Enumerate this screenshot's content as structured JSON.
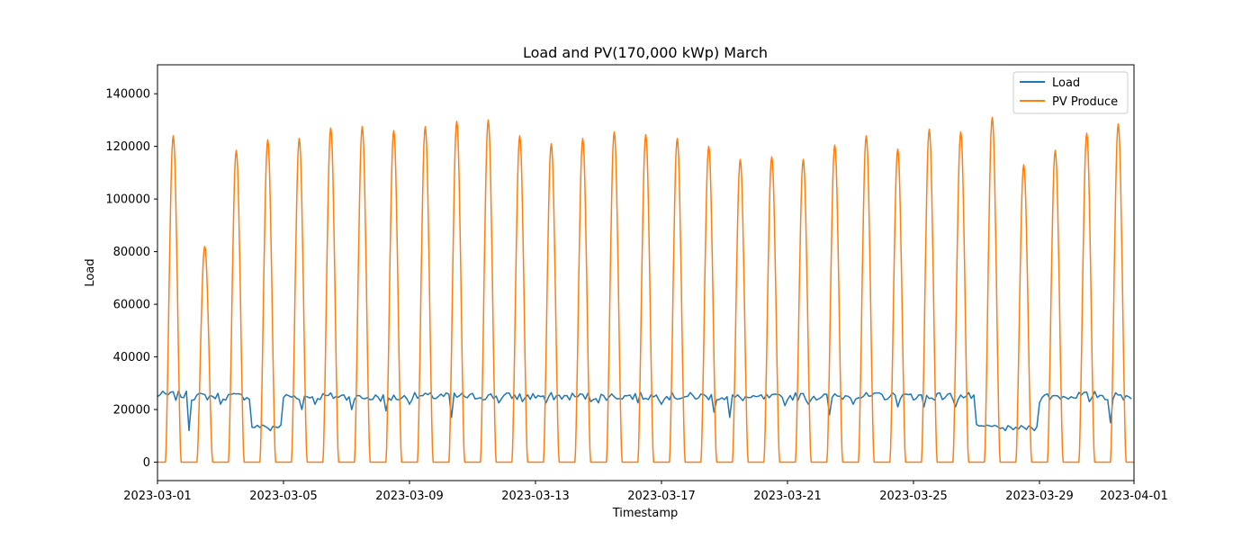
{
  "chart_data": {
    "type": "line",
    "title": "Load and PV(170,000 kWp) March",
    "xlabel": "Timestamp",
    "ylabel": "Load",
    "xlim": [
      "2023-03-01",
      "2023-04-01"
    ],
    "ylim": [
      -7000,
      151000
    ],
    "grid": false,
    "legend_position": "top-right",
    "x_tick_labels": [
      "2023-03-01",
      "2023-03-05",
      "2023-03-09",
      "2023-03-13",
      "2023-03-17",
      "2023-03-21",
      "2023-03-25",
      "2023-03-29",
      "2023-04-01"
    ],
    "y_ticks": [
      0,
      20000,
      40000,
      60000,
      80000,
      100000,
      120000,
      140000
    ],
    "series": [
      {
        "name": "Load",
        "color": "#1f77b4",
        "dates": [
          "2023-03-01",
          "2023-03-02",
          "2023-03-03",
          "2023-03-04",
          "2023-03-05",
          "2023-03-06",
          "2023-03-07",
          "2023-03-08",
          "2023-03-09",
          "2023-03-10",
          "2023-03-11",
          "2023-03-12",
          "2023-03-13",
          "2023-03-14",
          "2023-03-15",
          "2023-03-16",
          "2023-03-17",
          "2023-03-18",
          "2023-03-19",
          "2023-03-20",
          "2023-03-21",
          "2023-03-22",
          "2023-03-23",
          "2023-03-24",
          "2023-03-25",
          "2023-03-26",
          "2023-03-27",
          "2023-03-28",
          "2023-03-29",
          "2023-03-30",
          "2023-03-31"
        ],
        "daily_typical_load": [
          25500,
          25000,
          25000,
          13500,
          25000,
          25000,
          24500,
          24500,
          25000,
          25000,
          25000,
          25000,
          25000,
          25000,
          25000,
          25000,
          25000,
          25000,
          24500,
          24500,
          25000,
          25000,
          25000,
          25000,
          25000,
          25000,
          13500,
          13000,
          25000,
          25500,
          25000
        ],
        "daily_min_load": [
          23500,
          12000,
          22000,
          12000,
          20000,
          22000,
          20000,
          19500,
          22000,
          17000,
          22500,
          23000,
          22500,
          23000,
          22500,
          22500,
          22000,
          19000,
          17000,
          21500,
          22000,
          18000,
          22000,
          21000,
          21000,
          21000,
          12000,
          12000,
          22500,
          23000,
          15000
        ]
      },
      {
        "name": "PV Produce",
        "color": "#ff7f0e",
        "dates": [
          "2023-03-01",
          "2023-03-02",
          "2023-03-03",
          "2023-03-04",
          "2023-03-05",
          "2023-03-06",
          "2023-03-07",
          "2023-03-08",
          "2023-03-09",
          "2023-03-10",
          "2023-03-11",
          "2023-03-12",
          "2023-03-13",
          "2023-03-14",
          "2023-03-15",
          "2023-03-16",
          "2023-03-17",
          "2023-03-18",
          "2023-03-19",
          "2023-03-20",
          "2023-03-21",
          "2023-03-22",
          "2023-03-23",
          "2023-03-24",
          "2023-03-25",
          "2023-03-26",
          "2023-03-27",
          "2023-03-28",
          "2023-03-29",
          "2023-03-30",
          "2023-03-31"
        ],
        "daily_peak": [
          124000,
          82000,
          118500,
          122500,
          123000,
          127000,
          127500,
          126000,
          127500,
          129500,
          130000,
          124000,
          121000,
          123000,
          125500,
          124500,
          123000,
          120000,
          115000,
          116000,
          115000,
          120500,
          124000,
          119000,
          126500,
          125500,
          131000,
          113000,
          118500,
          125000,
          128500
        ]
      }
    ]
  }
}
